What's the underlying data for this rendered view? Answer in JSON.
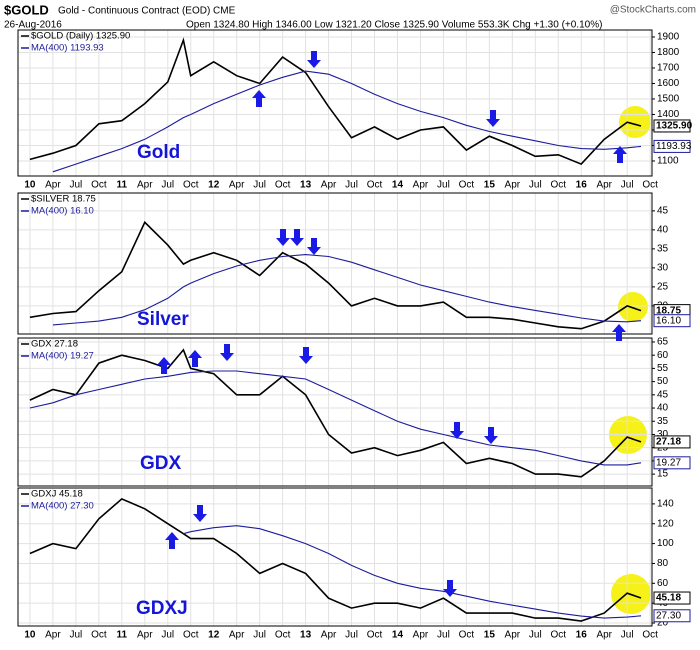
{
  "header": {
    "symbol": "$GOLD",
    "name": "Gold - Continuous Contract (EOD) CME",
    "date": "26-Aug-2016",
    "quote": "Open 1324.80 High 1346.00 Low 1321.20 Close 1325.90 Volume 553.3K Chg +1.30 (+0.10%)",
    "source": "@StockCharts.com"
  },
  "chart_data": [
    {
      "type": "line",
      "label": "Gold",
      "x_tick_labels": true,
      "grid": true,
      "x": [
        2010.0,
        2010.25,
        2010.5,
        2010.75,
        2011.0,
        2011.25,
        2011.5,
        2011.67,
        2011.75,
        2012.0,
        2012.25,
        2012.5,
        2012.75,
        2013.0,
        2013.25,
        2013.5,
        2013.75,
        2014.0,
        2014.25,
        2014.5,
        2014.75,
        2015.0,
        2015.25,
        2015.5,
        2015.75,
        2016.0,
        2016.25,
        2016.5,
        2016.65
      ],
      "series": [
        {
          "name": "$GOLD (Daily) 1325.90",
          "color": "#000000",
          "values": [
            1110,
            1150,
            1200,
            1340,
            1360,
            1470,
            1610,
            1880,
            1650,
            1740,
            1650,
            1600,
            1770,
            1670,
            1450,
            1250,
            1320,
            1240,
            1300,
            1320,
            1170,
            1260,
            1200,
            1130,
            1140,
            1080,
            1240,
            1350,
            1325.9
          ],
          "value_labels": [
            null,
            null,
            null,
            null,
            null,
            null,
            null,
            null,
            null,
            null,
            null,
            null,
            null,
            null,
            null,
            null,
            null,
            null,
            null,
            null,
            null,
            null,
            null,
            null,
            null,
            null,
            null,
            null,
            "1325.90"
          ]
        },
        {
          "name": "MA(400) 1193.93",
          "color": "#1c1c9c",
          "values": [
            null,
            1030,
            1080,
            1130,
            1180,
            1240,
            1320,
            1380,
            1400,
            1470,
            1530,
            1590,
            1640,
            1680,
            1660,
            1600,
            1530,
            1470,
            1420,
            1380,
            1330,
            1290,
            1260,
            1230,
            1200,
            1180,
            1175,
            1185,
            1193.93
          ]
        }
      ],
      "xlim": [
        2009.87,
        2016.77
      ],
      "ylim": [
        1003,
        1945
      ],
      "yticks": [
        1100,
        1200,
        1300,
        1400,
        1500,
        1600,
        1700,
        1800,
        1900
      ],
      "xticks": [
        {
          "value": 2010.0,
          "label": "10"
        },
        {
          "value": 2010.25,
          "label": "Apr"
        },
        {
          "value": 2010.5,
          "label": "Jul"
        },
        {
          "value": 2010.75,
          "label": "Oct"
        },
        {
          "value": 2011.0,
          "label": "11"
        },
        {
          "value": 2011.25,
          "label": "Apr"
        },
        {
          "value": 2011.5,
          "label": "Jul"
        },
        {
          "value": 2011.75,
          "label": "Oct"
        },
        {
          "value": 2012.0,
          "label": "12"
        },
        {
          "value": 2012.25,
          "label": "Apr"
        },
        {
          "value": 2012.5,
          "label": "Jul"
        },
        {
          "value": 2012.75,
          "label": "Oct"
        },
        {
          "value": 2013.0,
          "label": "13"
        },
        {
          "value": 2013.25,
          "label": "Apr"
        },
        {
          "value": 2013.5,
          "label": "Jul"
        },
        {
          "value": 2013.75,
          "label": "Oct"
        },
        {
          "value": 2014.0,
          "label": "14"
        },
        {
          "value": 2014.25,
          "label": "Apr"
        },
        {
          "value": 2014.5,
          "label": "Jul"
        },
        {
          "value": 2014.75,
          "label": "Oct"
        },
        {
          "value": 2015.0,
          "label": "15"
        },
        {
          "value": 2015.25,
          "label": "Apr"
        },
        {
          "value": 2015.5,
          "label": "Jul"
        },
        {
          "value": 2015.75,
          "label": "Oct"
        },
        {
          "value": 2016.0,
          "label": "16"
        },
        {
          "value": 2016.25,
          "label": "Apr"
        },
        {
          "value": 2016.5,
          "label": "Jul"
        },
        {
          "value": 2016.75,
          "label": "Oct"
        }
      ]
    },
    {
      "type": "line",
      "label": "Silver",
      "x_tick_labels": false,
      "grid": true,
      "x": [
        2010.0,
        2010.25,
        2010.5,
        2010.75,
        2011.0,
        2011.25,
        2011.5,
        2011.67,
        2011.75,
        2012.0,
        2012.25,
        2012.5,
        2012.75,
        2013.0,
        2013.25,
        2013.5,
        2013.75,
        2014.0,
        2014.25,
        2014.5,
        2014.75,
        2015.0,
        2015.25,
        2015.5,
        2015.75,
        2016.0,
        2016.25,
        2016.5,
        2016.65
      ],
      "series": [
        {
          "name": "$SILVER 18.75",
          "color": "#000000",
          "values": [
            17,
            18,
            18.5,
            24,
            29,
            42,
            36,
            31,
            32,
            34,
            32,
            28,
            34,
            31,
            26,
            20,
            22,
            20,
            20,
            21,
            17,
            17,
            16.5,
            15.5,
            14.5,
            14,
            16,
            20,
            18.75
          ]
        },
        {
          "name": "MA(400) 16.10",
          "color": "#1c1c9c",
          "values": [
            null,
            15,
            15.5,
            16,
            17,
            19,
            22,
            25,
            26,
            28.5,
            30.5,
            32,
            33,
            33.5,
            33,
            31.5,
            29.5,
            27.5,
            25.5,
            24,
            22.5,
            21,
            19.8,
            18.8,
            17.8,
            16.8,
            16,
            15.8,
            16.1
          ],
          "value_labels": [
            null,
            null,
            null,
            null,
            null,
            null,
            null,
            null,
            null,
            null,
            null,
            null,
            null,
            null,
            null,
            null,
            null,
            null,
            null,
            null,
            null,
            null,
            null,
            null,
            null,
            null,
            null,
            null,
            "16.10"
          ]
        }
      ],
      "xlim": [
        2009.87,
        2016.77
      ],
      "ylim": [
        12.6,
        49.7
      ],
      "yticks": [
        20,
        25,
        30,
        35,
        40,
        45
      ],
      "xticks": [
        2010.0,
        2010.25,
        2010.5,
        2010.75,
        2011.0,
        2011.25,
        2011.5,
        2011.75,
        2012.0,
        2012.25,
        2012.5,
        2012.75,
        2013.0,
        2013.25,
        2013.5,
        2013.75,
        2014.0,
        2014.25,
        2014.5,
        2014.75,
        2015.0,
        2015.25,
        2015.5,
        2015.75,
        2016.0,
        2016.25,
        2016.5,
        2016.75
      ]
    },
    {
      "type": "line",
      "label": "GDX",
      "x_tick_labels": false,
      "grid": true,
      "x": [
        2010.0,
        2010.25,
        2010.5,
        2010.75,
        2011.0,
        2011.25,
        2011.5,
        2011.67,
        2011.75,
        2012.0,
        2012.25,
        2012.5,
        2012.75,
        2013.0,
        2013.25,
        2013.5,
        2013.75,
        2014.0,
        2014.25,
        2014.5,
        2014.75,
        2015.0,
        2015.25,
        2015.5,
        2015.75,
        2016.0,
        2016.25,
        2016.5,
        2016.65
      ],
      "series": [
        {
          "name": "GDX 27.18",
          "color": "#000000",
          "values": [
            43,
            47,
            45,
            57,
            60,
            58,
            55,
            62,
            55,
            53,
            45,
            45,
            52,
            45,
            30,
            23,
            25,
            22,
            24,
            27,
            19,
            21,
            19,
            15,
            15,
            14,
            20,
            29,
            27.18
          ]
        },
        {
          "name": "MA(400) 19.27",
          "color": "#1c1c9c",
          "values": [
            40,
            42,
            45,
            47,
            49,
            51,
            52,
            53,
            53.5,
            54,
            54,
            53,
            52,
            51,
            47,
            43,
            39,
            35,
            32,
            30,
            28,
            26,
            25,
            24,
            22,
            20,
            18.5,
            18.5,
            19.27
          ]
        }
      ],
      "xlim": [
        2009.87,
        2016.77
      ],
      "ylim": [
        10.5,
        66.5
      ],
      "yticks": [
        15,
        20,
        25,
        30,
        35,
        40,
        45,
        50,
        55,
        60,
        65
      ],
      "xticks": [
        2010.0,
        2010.25,
        2010.5,
        2010.75,
        2011.0,
        2011.25,
        2011.5,
        2011.75,
        2012.0,
        2012.25,
        2012.5,
        2012.75,
        2013.0,
        2013.25,
        2013.5,
        2013.75,
        2014.0,
        2014.25,
        2014.5,
        2014.75,
        2015.0,
        2015.25,
        2015.5,
        2015.75,
        2016.0,
        2016.25,
        2016.5,
        2016.75
      ]
    },
    {
      "type": "line",
      "label": "GDXJ",
      "x_tick_labels": true,
      "grid": true,
      "x": [
        2010.0,
        2010.25,
        2010.5,
        2010.75,
        2011.0,
        2011.25,
        2011.5,
        2011.67,
        2011.75,
        2012.0,
        2012.25,
        2012.5,
        2012.75,
        2013.0,
        2013.25,
        2013.5,
        2013.75,
        2014.0,
        2014.25,
        2014.5,
        2014.75,
        2015.0,
        2015.25,
        2015.5,
        2015.75,
        2016.0,
        2016.25,
        2016.5,
        2016.65
      ],
      "series": [
        {
          "name": "GDXJ 45.18",
          "color": "#000000",
          "values": [
            90,
            100,
            95,
            125,
            145,
            135,
            120,
            110,
            105,
            105,
            90,
            70,
            80,
            70,
            45,
            35,
            40,
            40,
            35,
            45,
            30,
            30,
            30,
            25,
            25,
            22,
            30,
            50,
            45.18
          ]
        },
        {
          "name": "MA(400) 27.30",
          "color": "#1c1c9c",
          "values": [
            null,
            null,
            null,
            null,
            null,
            null,
            null,
            110,
            112,
            116,
            118,
            115,
            108,
            100,
            90,
            78,
            68,
            60,
            55,
            52,
            47,
            42,
            38,
            34,
            30,
            27,
            25,
            26,
            27.3
          ],
          "value_labels": [
            null,
            null,
            null,
            null,
            null,
            null,
            null,
            null,
            null,
            null,
            null,
            null,
            null,
            null,
            null,
            null,
            null,
            null,
            null,
            null,
            null,
            null,
            null,
            null,
            null,
            null,
            null,
            null,
            "27.30"
          ]
        }
      ],
      "xlim": [
        2009.87,
        2016.77
      ],
      "ylim": [
        17,
        156
      ],
      "yticks": [
        20,
        40,
        60,
        80,
        100,
        120,
        140
      ],
      "xticks": [
        {
          "value": 2010.0,
          "label": "10"
        },
        {
          "value": 2010.25,
          "label": "Apr"
        },
        {
          "value": 2010.5,
          "label": "Jul"
        },
        {
          "value": 2010.75,
          "label": "Oct"
        },
        {
          "value": 2011.0,
          "label": "11"
        },
        {
          "value": 2011.25,
          "label": "Apr"
        },
        {
          "value": 2011.5,
          "label": "Jul"
        },
        {
          "value": 2011.75,
          "label": "Oct"
        },
        {
          "value": 2012.0,
          "label": "12"
        },
        {
          "value": 2012.25,
          "label": "Apr"
        },
        {
          "value": 2012.5,
          "label": "Jul"
        },
        {
          "value": 2012.75,
          "label": "Oct"
        },
        {
          "value": 2013.0,
          "label": "13"
        },
        {
          "value": 2013.25,
          "label": "Apr"
        },
        {
          "value": 2013.5,
          "label": "Jul"
        },
        {
          "value": 2013.75,
          "label": "Oct"
        },
        {
          "value": 2014.0,
          "label": "14"
        },
        {
          "value": 2014.25,
          "label": "Apr"
        },
        {
          "value": 2014.5,
          "label": "Jul"
        },
        {
          "value": 2014.75,
          "label": "Oct"
        },
        {
          "value": 2015.0,
          "label": "15"
        },
        {
          "value": 2015.25,
          "label": "Apr"
        },
        {
          "value": 2015.5,
          "label": "Jul"
        },
        {
          "value": 2015.75,
          "label": "Oct"
        },
        {
          "value": 2016.0,
          "label": "16"
        },
        {
          "value": 2016.25,
          "label": "Apr"
        },
        {
          "value": 2016.5,
          "label": "Jul"
        },
        {
          "value": 2016.75,
          "label": "Oct"
        }
      ]
    }
  ]
}
